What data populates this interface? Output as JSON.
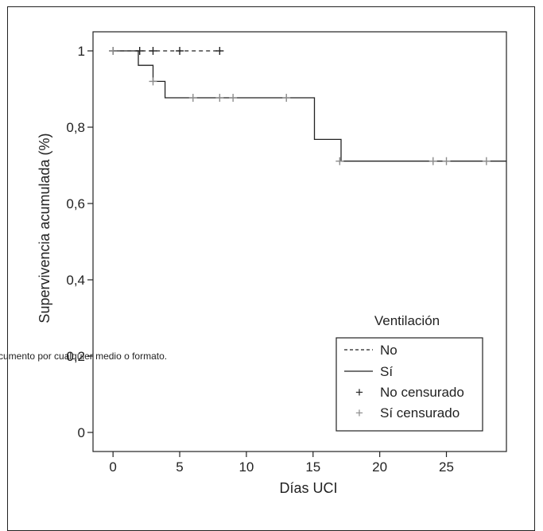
{
  "watermark_text": "cumento por cualquier medio o formato.",
  "chart_data": {
    "type": "line",
    "title": "",
    "xlabel": "Días UCI",
    "ylabel": "Supervivencia acumulada (%)",
    "xlim": [
      -1.5,
      29.5
    ],
    "ylim": [
      -0.05,
      1.05
    ],
    "x_ticks": [
      0,
      5,
      10,
      15,
      20,
      25
    ],
    "x_tick_labels": [
      "0",
      "5",
      "10",
      "15",
      "20",
      "25"
    ],
    "y_ticks": [
      0,
      0.2,
      0.4,
      0.6,
      0.8,
      1.0
    ],
    "y_tick_labels": [
      "0",
      "0,2",
      "0,4",
      "0,6",
      "0,8",
      "1"
    ],
    "grid": false,
    "legend": {
      "title": "Ventilación",
      "placement": "bottom-right",
      "entries": [
        "No",
        "Sí",
        "No censurado",
        "Sí censurado"
      ]
    },
    "series": [
      {
        "name": "No",
        "style": "dashed",
        "color": "#222222",
        "x": [
          0,
          8.1
        ],
        "y": [
          1,
          1
        ]
      },
      {
        "name": "Sí",
        "style": "solid",
        "color": "#222222",
        "x": [
          0,
          1.9,
          1.9,
          3.0,
          3.0,
          3.9,
          3.9,
          15.1,
          15.1,
          17.1,
          17.1,
          29.5
        ],
        "y": [
          1,
          1,
          0.962,
          0.962,
          0.92,
          0.92,
          0.877,
          0.877,
          0.768,
          0.768,
          0.711,
          0.711
        ]
      }
    ],
    "censored": [
      {
        "name": "No censurado",
        "color": "#222222",
        "x": [
          0,
          2,
          3,
          5,
          8
        ],
        "y": [
          1,
          1,
          1,
          1,
          1
        ]
      },
      {
        "name": "Sí censurado",
        "color": "#8c8c8c",
        "x": [
          0,
          3,
          6,
          8,
          9,
          13,
          17,
          24,
          25,
          28
        ],
        "y": [
          1,
          0.92,
          0.877,
          0.877,
          0.877,
          0.877,
          0.711,
          0.711,
          0.711,
          0.711
        ]
      }
    ]
  }
}
